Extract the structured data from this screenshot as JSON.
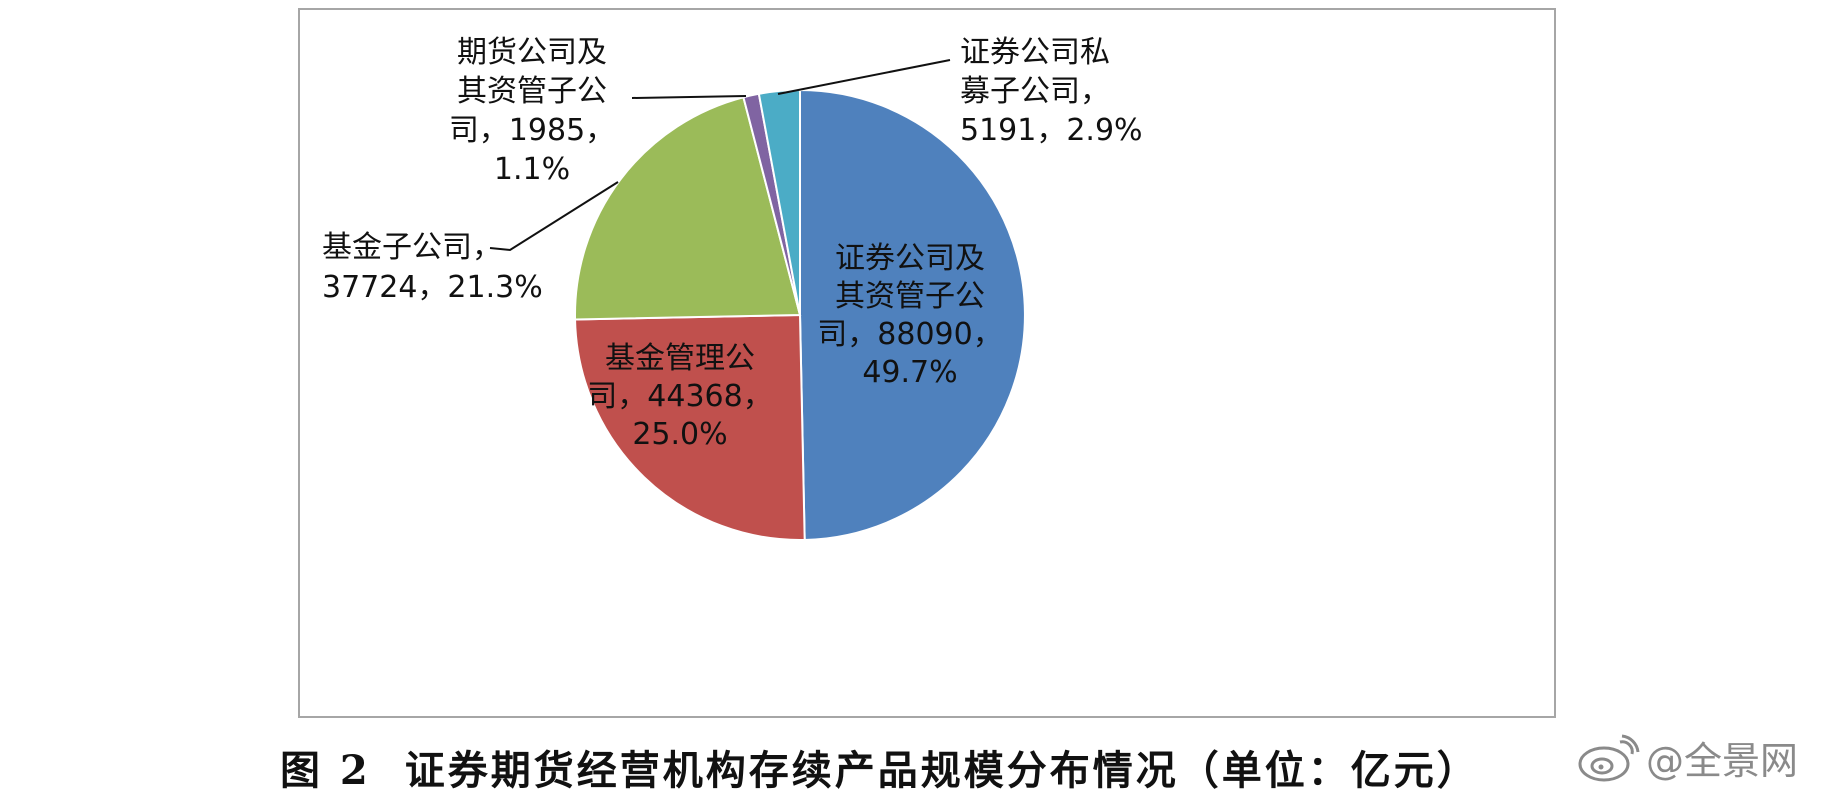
{
  "chart_data": {
    "type": "pie",
    "title": "",
    "unit_note": "（单位：亿元）",
    "slices": [
      {
        "name": "证券公司及其资管子公司",
        "value": 88090,
        "percent": "49.7%",
        "color": "#4f81bd",
        "label_lines": [
          "证券公司及",
          "其资管子公",
          "司，88090，",
          "49.7%"
        ]
      },
      {
        "name": "基金管理公司",
        "value": 44368,
        "percent": "25.0%",
        "color": "#c0504d",
        "label_lines": [
          "基金管理公",
          "司，44368，",
          "25.0%"
        ]
      },
      {
        "name": "基金子公司",
        "value": 37724,
        "percent": "21.3%",
        "color": "#9bbb59",
        "label_lines": [
          "基金子公司，",
          "37724，21.3%"
        ]
      },
      {
        "name": "期货公司及其资管子公司",
        "value": 1985,
        "percent": "1.1%",
        "color": "#8064a2",
        "label_lines": [
          "期货公司及",
          "其资管子公",
          "司，1985，",
          "1.1%"
        ]
      },
      {
        "name": "证券公司私募子公司",
        "value": 5191,
        "percent": "2.9%",
        "color": "#4bacc6",
        "label_lines": [
          "证券公司私",
          "募子公司，",
          "5191，2.9%"
        ]
      }
    ],
    "legend": "none"
  },
  "caption": {
    "figure_no": "图 2",
    "text": "证券期货经营机构存续产品规模分布情况（单位：亿元）"
  },
  "watermark": {
    "text": "@全景网",
    "icon": "weibo-icon"
  }
}
